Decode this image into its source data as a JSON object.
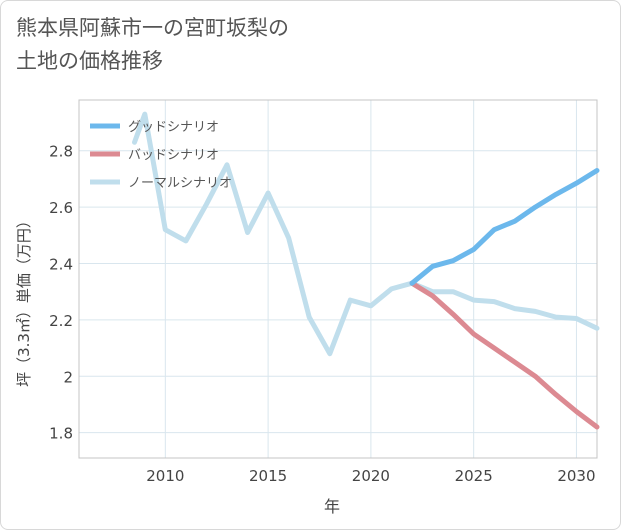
{
  "page": {
    "title_line1": "熊本県阿蘇市一の宮町坂梨の",
    "title_line2": "土地の価格推移"
  },
  "chart_data": {
    "type": "line",
    "title": "熊本県阿蘇市一の宮町坂梨の土地の価格推移",
    "xlabel": "年",
    "ylabel": "坪（3.3㎡）単価（万円）",
    "xlim": [
      2005.8,
      2031
    ],
    "ylim": [
      1.71,
      2.98
    ],
    "x_ticks": [
      2010,
      2015,
      2020,
      2025,
      2030
    ],
    "y_ticks": [
      1.8,
      2,
      2.2,
      2.4,
      2.6,
      2.8
    ],
    "x_tick_labels": [
      "2010",
      "2015",
      "2020",
      "2025",
      "2030"
    ],
    "y_tick_labels": [
      "1.8",
      "2",
      "2.2",
      "2.4",
      "2.6",
      "2.8"
    ],
    "grid": true,
    "legend_position": "top-left",
    "series": [
      {
        "name": "グッドシナリオ",
        "color": "#6cb8ec",
        "x": [
          2022,
          2023,
          2024,
          2025,
          2026,
          2027,
          2028,
          2029,
          2030,
          2031
        ],
        "values": [
          2.33,
          2.39,
          2.41,
          2.45,
          2.52,
          2.55,
          2.6,
          2.645,
          2.685,
          2.73
        ]
      },
      {
        "name": "バッドシナリオ",
        "color": "#dc8a92",
        "x": [
          2022,
          2023,
          2024,
          2025,
          2026,
          2027,
          2028,
          2029,
          2030,
          2031
        ],
        "values": [
          2.33,
          2.285,
          2.22,
          2.15,
          2.1,
          2.05,
          2.0,
          1.935,
          1.875,
          1.82
        ]
      },
      {
        "name": "ノーマルシナリオ",
        "color": "#c0deec",
        "x": [
          2008.5,
          2009,
          2010,
          2011,
          2012,
          2013,
          2014,
          2015,
          2016,
          2017,
          2018,
          2019,
          2020,
          2021,
          2022,
          2023,
          2024,
          2025,
          2026,
          2027,
          2028,
          2029,
          2030,
          2031
        ],
        "values": [
          2.83,
          2.93,
          2.52,
          2.48,
          2.61,
          2.75,
          2.51,
          2.65,
          2.49,
          2.21,
          2.08,
          2.27,
          2.25,
          2.31,
          2.33,
          2.3,
          2.3,
          2.27,
          2.265,
          2.24,
          2.23,
          2.21,
          2.205,
          2.17
        ]
      }
    ]
  }
}
